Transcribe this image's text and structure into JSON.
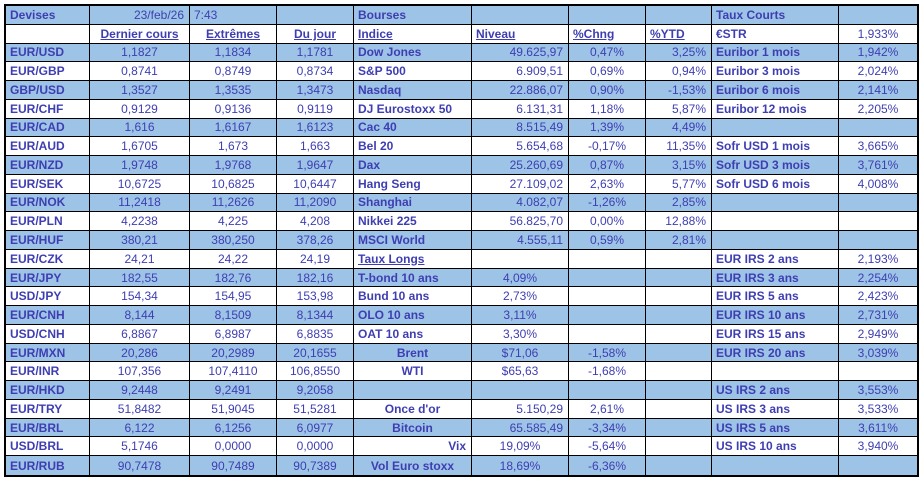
{
  "meta": {
    "date": "23/feb/26",
    "time": "7:43"
  },
  "colors": {
    "row_highlight": "#9dc3e6",
    "text": "#3e3eb2",
    "border": "#000000",
    "background": "#ffffff"
  },
  "devises": {
    "title": "Devises",
    "col_headers": [
      "Dernier cours",
      "Extrêmes",
      "Du jour"
    ],
    "rows": [
      {
        "pair": "EUR/USD",
        "dernier": "1,1827",
        "extremes": "1,1834",
        "jour": "1,1781"
      },
      {
        "pair": "EUR/GBP",
        "dernier": "0,8741",
        "extremes": "0,8749",
        "jour": "0,8734"
      },
      {
        "pair": "GBP/USD",
        "dernier": "1,3527",
        "extremes": "1,3535",
        "jour": "1,3473"
      },
      {
        "pair": "EUR/CHF",
        "dernier": "0,9129",
        "extremes": "0,9136",
        "jour": "0,9119"
      },
      {
        "pair": "EUR/CAD",
        "dernier": "1,616",
        "extremes": "1,6167",
        "jour": "1,6123"
      },
      {
        "pair": "EUR/AUD",
        "dernier": "1,6705",
        "extremes": "1,673",
        "jour": "1,663"
      },
      {
        "pair": "EUR/NZD",
        "dernier": "1,9748",
        "extremes": "1,9768",
        "jour": "1,9647"
      },
      {
        "pair": "EUR/SEK",
        "dernier": "10,6725",
        "extremes": "10,6825",
        "jour": "10,6447"
      },
      {
        "pair": "EUR/NOK",
        "dernier": "11,2418",
        "extremes": "11,2626",
        "jour": "11,2090"
      },
      {
        "pair": "EUR/PLN",
        "dernier": "4,2238",
        "extremes": "4,225",
        "jour": "4,208"
      },
      {
        "pair": "EUR/HUF",
        "dernier": "380,21",
        "extremes": "380,250",
        "jour": "378,26"
      },
      {
        "pair": "EUR/CZK",
        "dernier": "24,21",
        "extremes": "24,22",
        "jour": "24,19"
      },
      {
        "pair": "EUR/JPY",
        "dernier": "182,55",
        "extremes": "182,76",
        "jour": "182,16"
      },
      {
        "pair": "USD/JPY",
        "dernier": "154,34",
        "extremes": "154,95",
        "jour": "153,98"
      },
      {
        "pair": "EUR/CNH",
        "dernier": "8,144",
        "extremes": "8,1509",
        "jour": "8,1344"
      },
      {
        "pair": "USD/CNH",
        "dernier": "6,8867",
        "extremes": "6,8987",
        "jour": "6,8835"
      },
      {
        "pair": "EUR/MXN",
        "dernier": "20,286",
        "extremes": "20,2989",
        "jour": "20,1655"
      },
      {
        "pair": "EUR/INR",
        "dernier": "107,356",
        "extremes": "107,4110",
        "jour": "106,8550"
      },
      {
        "pair": "EUR/HKD",
        "dernier": "9,2448",
        "extremes": "9,2491",
        "jour": "9,2058"
      },
      {
        "pair": "EUR/TRY",
        "dernier": "51,8482",
        "extremes": "51,9045",
        "jour": "51,5281"
      },
      {
        "pair": "EUR/BRL",
        "dernier": "6,122",
        "extremes": "6,1256",
        "jour": "6,0977"
      },
      {
        "pair": "USD/BRL",
        "dernier": "5,1746",
        "extremes": "0,0000",
        "jour": "0,0000"
      },
      {
        "pair": "EUR/RUB",
        "dernier": "90,7478",
        "extremes": "90,7489",
        "jour": "90,7389"
      }
    ]
  },
  "bourses": {
    "title": "Bourses",
    "col_headers": [
      "Indice",
      "Niveau",
      "%Chng",
      "%YTD"
    ],
    "rows": [
      {
        "indice": "Dow Jones",
        "niveau": "49.625,97",
        "chng": "0,47%",
        "ytd": "3,25%"
      },
      {
        "indice": "S&P 500",
        "niveau": "6.909,51",
        "chng": "0,69%",
        "ytd": "0,94%"
      },
      {
        "indice": "Nasdaq",
        "niveau": "22.886,07",
        "chng": "0,90%",
        "ytd": "-1,53%"
      },
      {
        "indice": "DJ Eurostoxx 50",
        "niveau": "6.131,31",
        "chng": "1,18%",
        "ytd": "5,87%"
      },
      {
        "indice": "Cac 40",
        "niveau": "8.515,49",
        "chng": "1,39%",
        "ytd": "4,49%"
      },
      {
        "indice": "Bel 20",
        "niveau": "5.654,68",
        "chng": "-0,17%",
        "ytd": "11,35%"
      },
      {
        "indice": "Dax",
        "niveau": "25.260,69",
        "chng": "0,87%",
        "ytd": "3,15%"
      },
      {
        "indice": "Hang Seng",
        "niveau": "27.109,02",
        "chng": "2,63%",
        "ytd": "5,77%"
      },
      {
        "indice": "Shanghai",
        "niveau": "4.082,07",
        "chng": "-1,26%",
        "ytd": "2,85%"
      },
      {
        "indice": "Nikkei 225",
        "niveau": "56.825,70",
        "chng": "0,00%",
        "ytd": "12,88%"
      },
      {
        "indice": "MSCI World",
        "niveau": "4.555,11",
        "chng": "0,59%",
        "ytd": "2,81%"
      }
    ]
  },
  "taux_longs": {
    "title": "Taux Longs",
    "rows": [
      {
        "label": "T-bond 10 ans",
        "value": "4,09%"
      },
      {
        "label": "Bund 10 ans",
        "value": "2,73%"
      },
      {
        "label": "OLO 10 ans",
        "value": "3,11%"
      },
      {
        "label": "OAT 10 ans",
        "value": "3,30%"
      }
    ]
  },
  "energie": {
    "rows": [
      {
        "label": "Brent",
        "niveau": "$71,06",
        "chng": "-1,58%"
      },
      {
        "label": "WTI",
        "niveau": "$65,63",
        "chng": "-1,68%"
      }
    ]
  },
  "autres": {
    "rows": [
      {
        "label": "Once d'or",
        "niveau": "5.150,29",
        "chng": "2,61%"
      },
      {
        "label": "Bitcoin",
        "niveau": "65.585,49",
        "chng": "-3,34%"
      },
      {
        "label": "Vix",
        "niveau": "19,09%",
        "chng": "-5,64%"
      },
      {
        "label": "Vol Euro stoxx",
        "niveau": "18,69%",
        "chng": "-6,36%"
      }
    ]
  },
  "taux_courts": {
    "title": "Taux Courts",
    "estr": {
      "label": "€STR",
      "value": "1,933%"
    },
    "euribor": [
      {
        "label": "Euribor 1 mois",
        "value": "1,942%"
      },
      {
        "label": "Euribor 3 mois",
        "value": "2,024%"
      },
      {
        "label": "Euribor 6 mois",
        "value": "2,141%"
      },
      {
        "label": "Euribor 12 mois",
        "value": "2,205%"
      }
    ],
    "sofr": [
      {
        "label": "Sofr USD 1 mois",
        "value": "3,665%"
      },
      {
        "label": "Sofr USD 3 mois",
        "value": "3,761%"
      },
      {
        "label": "Sofr USD 6 mois",
        "value": "4,008%"
      }
    ],
    "eur_irs": [
      {
        "label": "EUR IRS 2 ans",
        "value": "2,193%"
      },
      {
        "label": "EUR IRS 3 ans",
        "value": "2,254%"
      },
      {
        "label": "EUR IRS 5 ans",
        "value": "2,423%"
      },
      {
        "label": "EUR IRS 10 ans",
        "value": "2,731%"
      },
      {
        "label": "EUR IRS 15 ans",
        "value": "2,949%"
      },
      {
        "label": "EUR IRS 20 ans",
        "value": "3,039%"
      }
    ],
    "us_irs": [
      {
        "label": "US IRS 2 ans",
        "value": "3,553%"
      },
      {
        "label": "US IRS 3 ans",
        "value": "3,533%"
      },
      {
        "label": "US IRS 5 ans",
        "value": "3,611%"
      },
      {
        "label": "US IRS 10 ans",
        "value": "3,940%"
      }
    ]
  }
}
